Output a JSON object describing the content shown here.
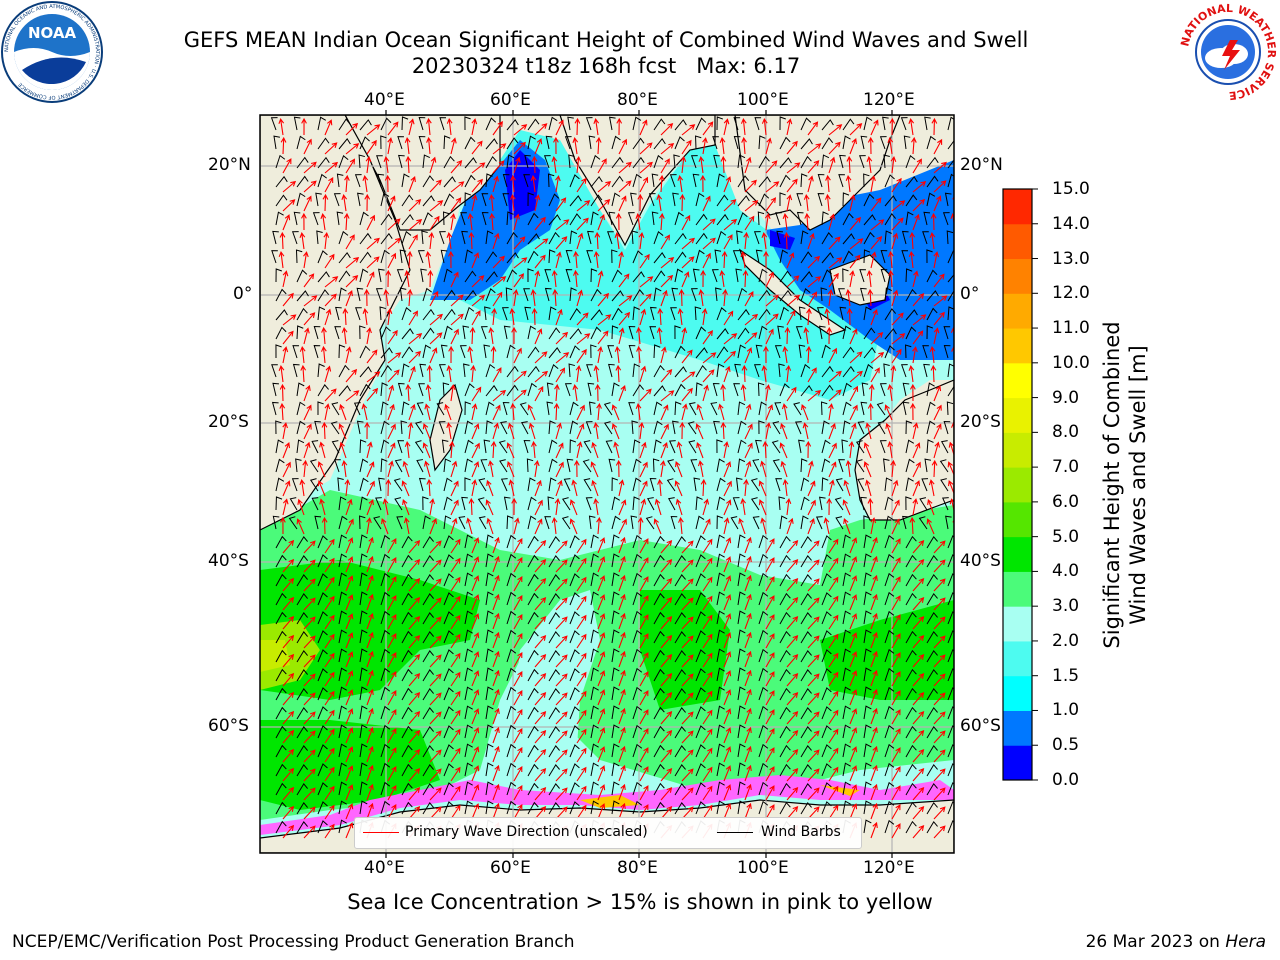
{
  "title": {
    "line1": "GEFS MEAN Indian Ocean Significant Height of Combined Wind Waves and Swell",
    "line2": "20230324 t18z 168h fcst",
    "max_label": "Max: 6.17"
  },
  "logos": {
    "noaa_text": "NOAA",
    "noaa_ring_text": "NATIONAL OCEANIC AND ATMOSPHERIC ADMINISTRATION · U.S. DEPARTMENT OF COMMERCE",
    "nws_ring_text": "NATIONAL WEATHER SERVICE"
  },
  "axes": {
    "lon_ticks": [
      "40°E",
      "60°E",
      "80°E",
      "100°E",
      "120°E"
    ],
    "lat_ticks": [
      "20°N",
      "0°",
      "20°S",
      "40°S",
      "60°S"
    ],
    "lon_values": [
      40,
      60,
      80,
      100,
      120
    ],
    "lat_values": [
      20,
      0,
      -20,
      -40,
      -60
    ],
    "lon_range": [
      20,
      129
    ],
    "lat_range": [
      28,
      -88
    ]
  },
  "colorbar": {
    "label_line1": "Significant Height of Combined",
    "label_line2": "Wind Waves and Swell [m]",
    "ticks": [
      "0.0",
      "0.5",
      "1.0",
      "1.5",
      "2.0",
      "3.0",
      "4.0",
      "5.0",
      "6.0",
      "7.0",
      "8.0",
      "9.0",
      "10.0",
      "11.0",
      "12.0",
      "13.0",
      "14.0",
      "15.0"
    ],
    "colors": [
      "#0000ff",
      "#0078ff",
      "#00ffff",
      "#4dfbf0",
      "#a8fff2",
      "#4bfb7a",
      "#00e600",
      "#55e600",
      "#9bea00",
      "#c8ec00",
      "#e9f200",
      "#ffff00",
      "#ffc800",
      "#ffaa00",
      "#ff8200",
      "#ff5a00",
      "#ff2800"
    ]
  },
  "legend": {
    "wave_label": "Primary Wave Direction (unscaled)",
    "wind_label": "Wind Barbs",
    "wave_color": "#ff0000",
    "wind_color": "#000000"
  },
  "note": "Sea Ice Concentration > 15% is shown in pink to yellow",
  "footer": {
    "credit": "NCEP/EMC/Verification Post Processing Product Generation Branch",
    "date": "26 Mar 2023 on",
    "machine": "Hera"
  },
  "colors": {
    "land": "#efeddc",
    "grid": "#b3b3b3",
    "ice": "#ff66ff"
  }
}
